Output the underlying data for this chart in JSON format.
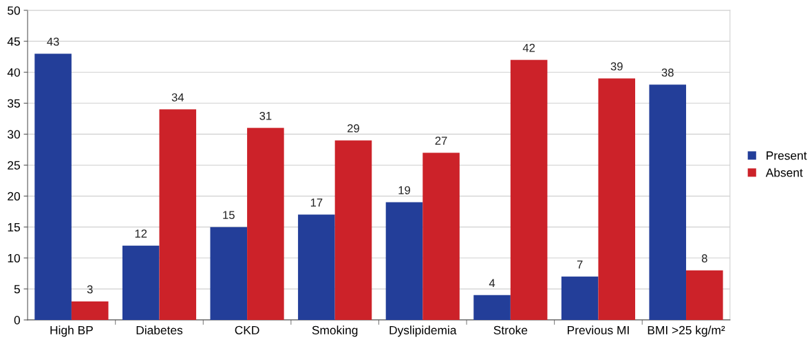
{
  "chart_data": {
    "type": "bar",
    "categories": [
      "High BP",
      "Diabetes",
      "CKD",
      "Smoking",
      "Dyslipidemia",
      "Stroke",
      "Previous MI",
      "BMI >25 kg/m²"
    ],
    "series": [
      {
        "name": "Present",
        "color": "#233e99",
        "values": [
          43,
          12,
          15,
          17,
          19,
          4,
          7,
          38
        ]
      },
      {
        "name": "Absent",
        "color": "#cc2229",
        "values": [
          3,
          34,
          31,
          29,
          27,
          42,
          39,
          8
        ]
      }
    ],
    "ylim": [
      0,
      50
    ],
    "yticks": [
      0,
      5,
      10,
      15,
      20,
      25,
      30,
      35,
      40,
      45,
      50
    ],
    "grid": "y",
    "legend": "right",
    "data_labels": true
  }
}
